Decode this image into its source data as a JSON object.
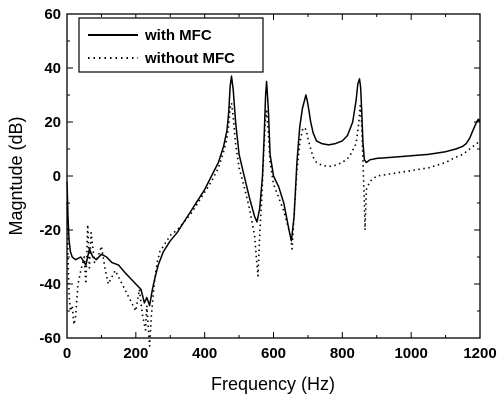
{
  "chart_data": {
    "type": "line",
    "title": "",
    "xlabel": "Frequency (Hz)",
    "ylabel": "Magntude (dB)",
    "xlim": [
      0,
      1200
    ],
    "ylim": [
      -60,
      60
    ],
    "xticks": [
      "0",
      "200",
      "400",
      "600",
      "800",
      "1000",
      "1200"
    ],
    "yticks": [
      "60",
      "40",
      "20",
      "0",
      "-20",
      "-40",
      "-60"
    ],
    "grid": false,
    "legend_position": "top-left",
    "series": [
      {
        "name": "with MFC",
        "style": "solid",
        "color": "#000000",
        "x": [
          0,
          3,
          6,
          10,
          15,
          25,
          40,
          55,
          65,
          75,
          85,
          100,
          115,
          130,
          150,
          170,
          185,
          200,
          215,
          225,
          232,
          240,
          248,
          255,
          265,
          280,
          300,
          320,
          340,
          360,
          380,
          400,
          420,
          440,
          455,
          465,
          470,
          474,
          478,
          483,
          490,
          500,
          515,
          530,
          545,
          552,
          560,
          568,
          573,
          577,
          580,
          585,
          590,
          600,
          615,
          630,
          645,
          652,
          660,
          668,
          676,
          684,
          690,
          694,
          698,
          702,
          708,
          715,
          725,
          740,
          760,
          780,
          800,
          815,
          830,
          840,
          845,
          850,
          853,
          856,
          860,
          864,
          870,
          880,
          900,
          950,
          1000,
          1050,
          1100,
          1130,
          1150,
          1160,
          1170,
          1180,
          1190,
          1195,
          1200
        ],
        "y": [
          -2,
          -15,
          -24,
          -28,
          -30,
          -31,
          -30,
          -33,
          -27,
          -30,
          -31,
          -29,
          -30,
          -32,
          -33,
          -36,
          -38,
          -40,
          -42,
          -47,
          -45,
          -48,
          -42,
          -38,
          -33,
          -28,
          -24,
          -21,
          -17,
          -13,
          -9,
          -5,
          0,
          5,
          11,
          17,
          24,
          33,
          37,
          32,
          20,
          8,
          0,
          -8,
          -15,
          -17,
          -12,
          0,
          15,
          30,
          35,
          25,
          8,
          0,
          -4,
          -10,
          -20,
          -24,
          -15,
          5,
          18,
          25,
          28,
          30,
          28,
          25,
          20,
          16,
          13,
          12,
          11.5,
          12,
          13,
          15,
          20,
          28,
          34,
          36,
          33,
          25,
          12,
          6,
          5,
          6,
          6.5,
          7,
          7.5,
          8,
          9,
          10,
          11,
          12,
          14,
          17,
          20,
          21,
          20
        ]
      },
      {
        "name": "without MFC",
        "style": "dotted",
        "color": "#000000",
        "x": [
          0,
          3,
          6,
          10,
          15,
          20,
          25,
          32,
          40,
          50,
          55,
          60,
          65,
          70,
          80,
          90,
          100,
          110,
          120,
          140,
          160,
          180,
          200,
          210,
          220,
          228,
          232,
          240,
          245,
          250,
          255,
          262,
          270,
          285,
          300,
          320,
          340,
          360,
          380,
          400,
          420,
          440,
          455,
          465,
          470,
          474,
          478,
          483,
          490,
          500,
          515,
          530,
          545,
          550,
          555,
          560,
          566,
          572,
          576,
          580,
          584,
          590,
          600,
          615,
          630,
          645,
          650,
          654,
          660,
          668,
          676,
          684,
          690,
          695,
          700,
          708,
          715,
          725,
          740,
          760,
          780,
          800,
          820,
          840,
          848,
          852,
          856,
          860,
          864,
          866,
          870,
          880,
          900,
          950,
          1000,
          1050,
          1100,
          1130,
          1150,
          1170,
          1190,
          1200
        ],
        "y": [
          -10,
          -30,
          -44,
          -50,
          -48,
          -55,
          -52,
          -40,
          -35,
          -30,
          -40,
          -18,
          -34,
          -21,
          -32,
          -30,
          -26,
          -34,
          -40,
          -35,
          -40,
          -45,
          -50,
          -42,
          -52,
          -57,
          -48,
          -63,
          -52,
          -45,
          -38,
          -32,
          -28,
          -25,
          -22,
          -20,
          -17,
          -14,
          -10,
          -6,
          -2,
          3,
          9,
          14,
          19,
          25,
          27,
          22,
          12,
          3,
          -4,
          -12,
          -22,
          -30,
          -37,
          -22,
          -8,
          10,
          20,
          24,
          18,
          5,
          -3,
          -8,
          -13,
          -20,
          -23,
          -27,
          -14,
          2,
          12,
          17,
          18,
          17,
          14,
          10,
          7,
          5,
          4,
          3.5,
          4,
          5,
          7,
          12,
          20,
          26,
          20,
          5,
          -10,
          -20,
          -5,
          -2,
          0,
          1,
          2,
          3,
          5,
          7,
          8,
          10,
          12,
          13
        ]
      }
    ]
  }
}
